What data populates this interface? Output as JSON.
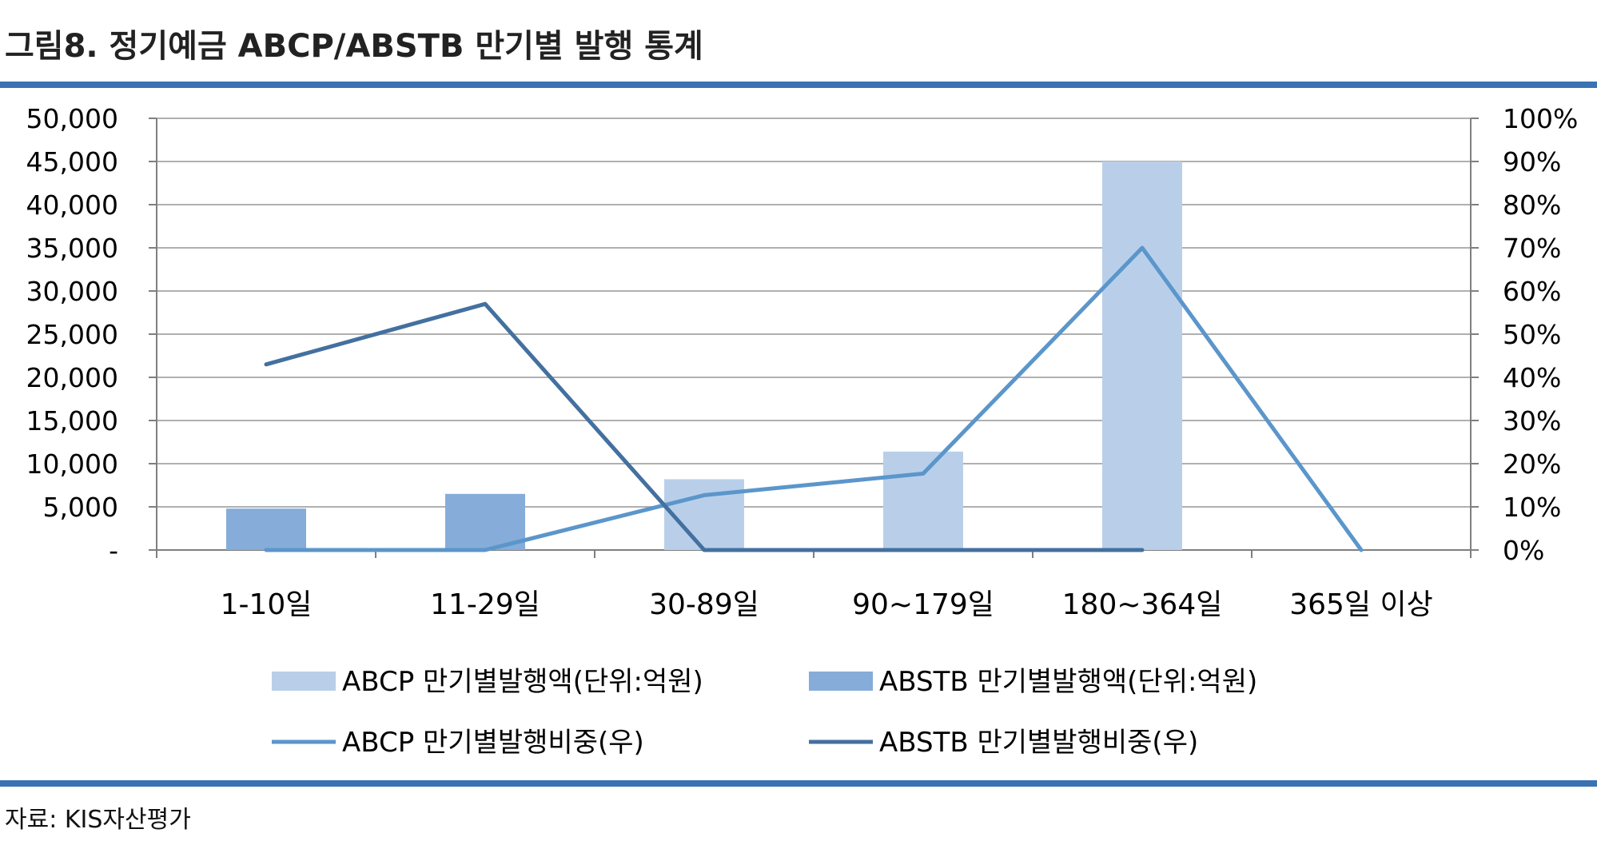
{
  "figure": {
    "title": "그림8. 정기예금 ABCP/ABSTB 만기별 발행 통계",
    "source": "자료: KIS자산평가"
  },
  "colors": {
    "rule": "#3a72b4",
    "abcp_bar": "#b9cfe9",
    "abstb_bar": "#86acd9",
    "abcp_line": "#5b96cb",
    "abstb_line": "#44709f",
    "grid": "#b0b0b0"
  },
  "chart_data": {
    "type": "bar",
    "categories": [
      "1-10일",
      "11-29일",
      "30-89일",
      "90~179일",
      "180~364일",
      "365일 이상"
    ],
    "y_left": {
      "ylim": [
        0,
        50000
      ],
      "ticks": [
        "-",
        "5,000",
        "10,000",
        "15,000",
        "20,000",
        "25,000",
        "30,000",
        "35,000",
        "40,000",
        "45,000",
        "50,000"
      ],
      "tick_values": [
        0,
        5000,
        10000,
        15000,
        20000,
        25000,
        30000,
        35000,
        40000,
        45000,
        50000
      ]
    },
    "y_right": {
      "ylim": [
        0,
        100
      ],
      "ticks": [
        "0%",
        "10%",
        "20%",
        "30%",
        "40%",
        "50%",
        "60%",
        "70%",
        "80%",
        "90%",
        "100%"
      ],
      "tick_values": [
        0,
        10,
        20,
        30,
        40,
        50,
        60,
        70,
        80,
        90,
        100
      ]
    },
    "grid": true,
    "legend_position": "bottom",
    "series": [
      {
        "name": "ABCP 만기별발행액(단위:억원)",
        "kind": "bar",
        "axis": "left",
        "values": [
          0,
          0,
          8200,
          11400,
          45000,
          0
        ]
      },
      {
        "name": "ABSTB 만기별발행액(단위:억원)",
        "kind": "bar",
        "axis": "left",
        "values": [
          4800,
          6500,
          0,
          0,
          0,
          0
        ]
      },
      {
        "name": "ABCP 만기별발행비중(우)",
        "kind": "line",
        "axis": "right",
        "values": [
          0,
          0,
          12.7,
          17.7,
          70,
          0
        ]
      },
      {
        "name": "ABSTB 만기별발행비중(우)",
        "kind": "line",
        "axis": "right",
        "values": [
          43,
          57,
          0,
          0,
          0,
          null
        ]
      }
    ]
  }
}
